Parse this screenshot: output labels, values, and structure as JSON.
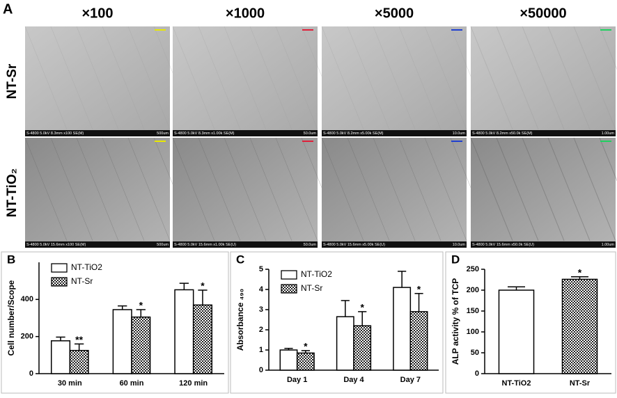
{
  "panel_a": {
    "label": "A",
    "columns": [
      "×100",
      "×1000",
      "×5000",
      "×50000"
    ],
    "rows": [
      "NT-Sr",
      "NT-TiO₂"
    ],
    "scale_bar_colors": [
      "#e8e800",
      "#e0203a",
      "#2040d0",
      "#20d060"
    ],
    "info": [
      [
        {
          "left": "S-4800 5.0kV 8.3mm x100 SE(M)",
          "right": "500um"
        },
        {
          "left": "S-4800 5.0kV 8.3mm x1.00k SE(M)",
          "right": "50.0um"
        },
        {
          "left": "S-4800 5.0kV 8.2mm x5.00k SE(M)",
          "right": "10.0um"
        },
        {
          "left": "S-4800 5.0kV 8.2mm x50.0k SE(M)",
          "right": "1.00um"
        }
      ],
      [
        {
          "left": "S-4800 5.0kV 15.6mm x100 SE(M)",
          "right": "500um"
        },
        {
          "left": "S-4800 5.0kV 15.6mm x1.00k SE(U)",
          "right": "50.0um"
        },
        {
          "left": "S-4800 5.0kV 15.6mm x5.00k SE(U)",
          "right": "10.0um"
        },
        {
          "left": "S-4800 5.0kV 15.6mm x50.0k SE(U)",
          "right": "1.00um"
        }
      ]
    ]
  },
  "chart_data": [
    {
      "type": "bar",
      "label": "B",
      "ylabel": "Cell number/Scope",
      "categories": [
        "30 min",
        "60 min",
        "120 min"
      ],
      "ylim": [
        0,
        600
      ],
      "yticks": [
        0,
        200,
        400
      ],
      "legend": "upper left",
      "series": [
        {
          "name": "NT-TiO2",
          "fill": "open",
          "values": [
            177,
            345,
            452
          ],
          "errors": [
            20,
            20,
            35
          ]
        },
        {
          "name": "NT-Sr",
          "fill": "crosshatch",
          "values": [
            125,
            305,
            370
          ],
          "errors": [
            35,
            40,
            80
          ],
          "annotations": [
            "**",
            "*",
            "*"
          ]
        }
      ]
    },
    {
      "type": "bar",
      "label": "C",
      "ylabel": "Absorbance ₄₉₀",
      "categories": [
        "Day 1",
        "Day 4",
        "Day 7"
      ],
      "ylim": [
        0,
        5
      ],
      "yticks": [
        0,
        1,
        2,
        3,
        4,
        5
      ],
      "legend": "upper left",
      "series": [
        {
          "name": "NT-TiO2",
          "fill": "open",
          "values": [
            1.0,
            2.65,
            4.1
          ],
          "errors": [
            0.08,
            0.8,
            0.8
          ]
        },
        {
          "name": "NT-Sr",
          "fill": "crosshatch",
          "values": [
            0.85,
            2.2,
            2.9
          ],
          "errors": [
            0.12,
            0.7,
            0.9
          ],
          "annotations": [
            "*",
            "*",
            "*"
          ]
        }
      ]
    },
    {
      "type": "bar",
      "label": "D",
      "ylabel": "ALP activity % of TCP",
      "categories": [
        "NT-TiO2",
        "NT-Sr"
      ],
      "ylim": [
        0,
        250
      ],
      "yticks": [
        0,
        50,
        100,
        150,
        200,
        250
      ],
      "values": [
        200,
        226
      ],
      "errors": [
        8,
        6
      ],
      "fills": [
        "open",
        "crosshatch"
      ],
      "annotations": [
        null,
        "*"
      ]
    }
  ]
}
